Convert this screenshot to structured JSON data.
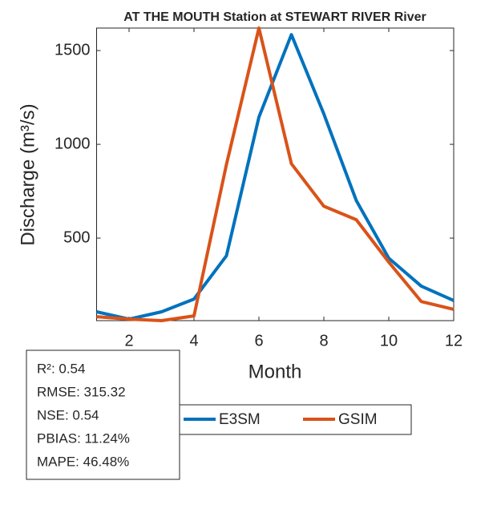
{
  "chart_data": {
    "type": "line",
    "title": "AT THE MOUTH  Station at  STEWART RIVER  River",
    "xlabel": "Month",
    "ylabel": "Discharge (m³/s)",
    "x": [
      1,
      2,
      3,
      4,
      5,
      6,
      7,
      8,
      9,
      10,
      11,
      12
    ],
    "series": [
      {
        "name": "E3SM",
        "color": "#0072bd",
        "values": [
          107,
          68,
          107,
          175,
          406,
          1145,
          1585,
          1162,
          700,
          393,
          244,
          167
        ]
      },
      {
        "name": "GSIM",
        "color": "#d95319",
        "values": [
          81,
          68,
          60,
          85,
          893,
          1620,
          897,
          670,
          598,
          372,
          162,
          120
        ]
      }
    ],
    "xlim": [
      1,
      12
    ],
    "xticks": [
      2,
      4,
      6,
      8,
      10,
      12
    ],
    "ylim": [
      60,
      1620
    ],
    "yticks": [
      500,
      1000,
      1500
    ],
    "stats": [
      "R²: 0.54",
      "RMSE: 315.32",
      "NSE: 0.54",
      "PBIAS: 11.24%",
      "MAPE: 46.48%"
    ]
  }
}
